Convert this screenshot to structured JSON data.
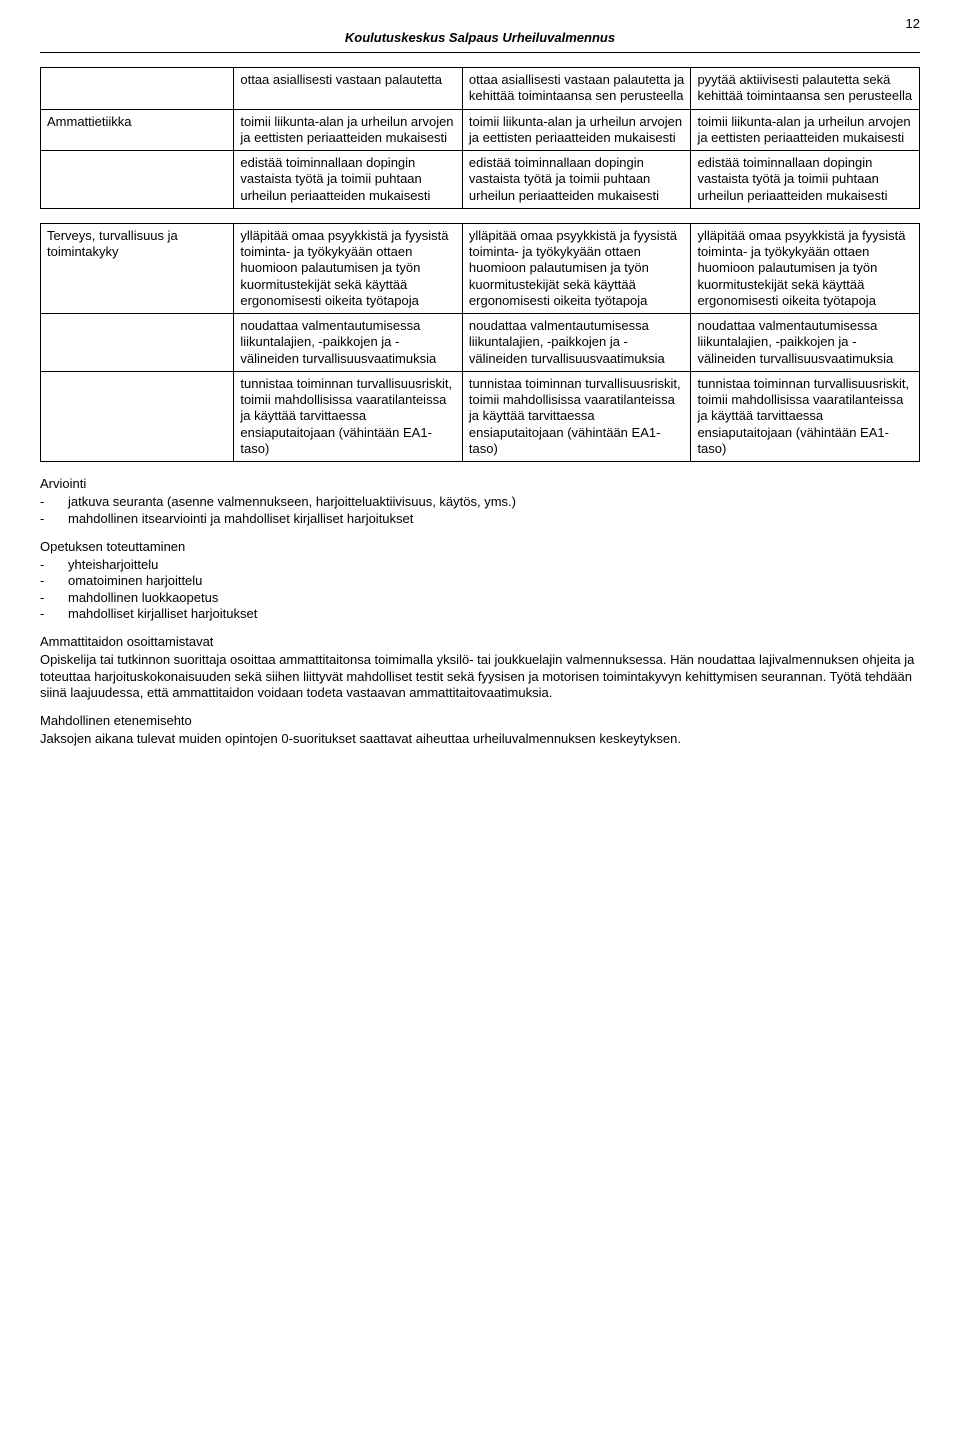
{
  "header": {
    "title": "Koulutuskeskus Salpaus Urheiluvalmennus",
    "page_number": "12"
  },
  "table1": {
    "rows": [
      {
        "label": "",
        "c1": "ottaa asiallisesti vastaan palautetta",
        "c2": "ottaa asiallisesti vastaan palautetta ja kehittää toimintaansa sen perusteella",
        "c3": "pyytää aktiivisesti palautetta sekä kehittää toimintaansa sen perusteella"
      },
      {
        "label": "Ammattietiikka",
        "c1": "toimii liikunta-alan ja urheilun arvojen ja eettisten periaatteiden mukaisesti",
        "c2": "toimii liikunta-alan ja urheilun arvojen ja eettisten periaatteiden mukaisesti",
        "c3": "toimii liikunta-alan ja urheilun arvojen ja eettisten periaatteiden mukaisesti"
      },
      {
        "label": "",
        "c1": "edistää toiminnallaan dopingin vastaista työtä ja toimii puhtaan urheilun periaatteiden mukaisesti",
        "c2": "edistää toiminnallaan dopingin vastaista työtä ja toimii puhtaan urheilun periaatteiden mukaisesti",
        "c3": "edistää toiminnallaan dopingin vastaista työtä ja toimii puhtaan urheilun periaatteiden mukaisesti"
      }
    ]
  },
  "table2": {
    "rows": [
      {
        "label": "Terveys, turvallisuus ja toimintakyky",
        "c1": "ylläpitää omaa psyykkistä ja fyysistä toiminta- ja työkykyään ottaen huomioon palautumisen ja työn kuormitustekijät sekä käyttää ergonomisesti oikeita työtapoja",
        "c2": "ylläpitää omaa psyykkistä ja fyysistä toiminta- ja työkykyään ottaen huomioon palautumisen ja työn kuormitustekijät sekä käyttää ergonomisesti oikeita työtapoja",
        "c3": "ylläpitää omaa psyykkistä ja fyysistä toiminta- ja työkykyään ottaen huomioon palautumisen ja työn kuormitustekijät sekä käyttää ergonomisesti oikeita työtapoja"
      },
      {
        "label": "",
        "c1": "noudattaa valmentautumisessa liikuntalajien, -paikkojen ja -välineiden turvallisuusvaatimuksia",
        "c2": "noudattaa valmentautumisessa liikuntalajien, -paikkojen ja -välineiden turvallisuusvaatimuksia",
        "c3": "noudattaa valmentautumisessa liikuntalajien, -paikkojen ja -välineiden turvallisuusvaatimuksia"
      },
      {
        "label": "",
        "c1": "tunnistaa toiminnan turvallisuusriskit, toimii mahdollisissa vaaratilanteissa ja käyttää tarvittaessa ensiaputaitojaan (vähintään EA1-taso)",
        "c2": "tunnistaa toiminnan turvallisuusriskit, toimii mahdollisissa vaaratilanteissa ja käyttää tarvittaessa ensiaputaitojaan (vähintään EA1-taso)",
        "c3": "tunnistaa toiminnan turvallisuusriskit, toimii mahdollisissa vaaratilanteissa ja käyttää tarvittaessa ensiaputaitojaan (vähintään EA1-taso)"
      }
    ]
  },
  "arviointi": {
    "heading": "Arviointi",
    "items": [
      "jatkuva seuranta (asenne valmennukseen, harjoitteluaktiivisuus, käytös, yms.)",
      "mahdollinen itsearviointi ja mahdolliset kirjalliset harjoitukset"
    ]
  },
  "opetuksen": {
    "heading": "Opetuksen toteuttaminen",
    "items": [
      "yhteisharjoittelu",
      "omatoiminen harjoittelu",
      "mahdollinen luokkaopetus",
      "mahdolliset kirjalliset harjoitukset"
    ]
  },
  "ammattitaidon": {
    "heading": "Ammattitaidon osoittamistavat",
    "body": "Opiskelija tai tutkinnon suorittaja osoittaa ammattitaitonsa toimimalla yksilö- tai joukkuelajin valmennuksessa. Hän noudattaa lajivalmennuksen ohjeita ja toteuttaa harjoituskokonaisuuden sekä siihen liittyvät mahdolliset testit sekä fyysisen ja motorisen toimintakyvyn kehittymisen seurannan. Työtä tehdään siinä laajuudessa, että ammattitaidon voidaan todeta vastaavan ammattitaitovaatimuksia."
  },
  "eteneminen": {
    "heading": "Mahdollinen etenemisehto",
    "body": "Jaksojen aikana tulevat muiden opintojen 0-suoritukset saattavat aiheuttaa urheiluvalmennuksen keskeytyksen."
  }
}
